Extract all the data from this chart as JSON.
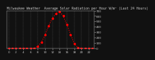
{
  "title": "Milwaukee Weather  Average Solar Radiation per Hour W/m² (Last 24 Hours)",
  "hours": [
    0,
    1,
    2,
    3,
    4,
    5,
    6,
    7,
    8,
    9,
    10,
    11,
    12,
    13,
    14,
    15,
    16,
    17,
    18,
    19,
    20,
    21,
    22,
    23
  ],
  "values": [
    0,
    0,
    0,
    0,
    0,
    0,
    0,
    5,
    40,
    120,
    250,
    420,
    560,
    650,
    680,
    600,
    440,
    260,
    90,
    20,
    2,
    0,
    0,
    0
  ],
  "line_color": "#ff0000",
  "bg_color": "#111111",
  "plot_bg": "#111111",
  "grid_color": "#555555",
  "tick_color": "#cccccc",
  "title_color": "#cccccc",
  "ylim": [
    0,
    700
  ],
  "yticks": [
    0,
    100,
    200,
    300,
    400,
    500,
    600,
    700
  ],
  "ylabel_fontsize": 3.0,
  "xlabel_fontsize": 3.0,
  "title_fontsize": 3.5,
  "linewidth": 0.8,
  "markersize": 1.5,
  "xlim": [
    -0.5,
    23.5
  ],
  "xtick_step": 2
}
